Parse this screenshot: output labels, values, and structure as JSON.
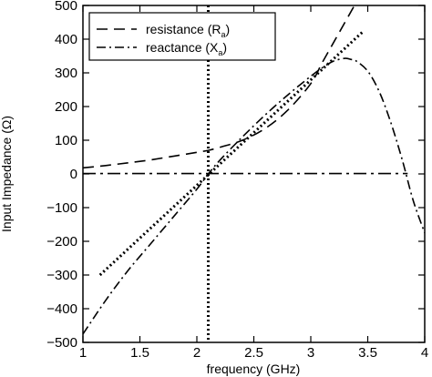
{
  "chart_data": {
    "type": "line",
    "xlabel": "frequency (GHz)",
    "ylabel": "Input Impedance (Ω)",
    "xlim": [
      1,
      4
    ],
    "ylim": [
      -500,
      500
    ],
    "xticks": [
      1,
      1.5,
      2,
      2.5,
      3,
      3.5,
      4
    ],
    "xtick_labels": [
      "1",
      "1.5",
      "2",
      "2.5",
      "3",
      "3.5",
      "4"
    ],
    "yticks": [
      -500,
      -400,
      -300,
      -200,
      -100,
      0,
      100,
      200,
      300,
      400,
      500
    ],
    "ytick_labels": [
      "−500",
      "−400",
      "−300",
      "−200",
      "−100",
      "0",
      "100",
      "200",
      "300",
      "400",
      "500"
    ],
    "legend_position": "top-left",
    "legend": [
      {
        "label": "resistance (R",
        "sub": "a",
        "close": ")",
        "dash": "12,7"
      },
      {
        "label": "reactance (X",
        "sub": "a",
        "close": ")",
        "dash": "10,4,2,4"
      }
    ],
    "series": [
      {
        "name": "resistance (Ra)",
        "style": "dashed",
        "x": [
          1.0,
          1.2,
          1.4,
          1.6,
          1.8,
          2.0,
          2.1,
          2.2,
          2.4,
          2.6,
          2.8,
          3.0,
          3.1,
          3.2,
          3.3,
          3.4
        ],
        "y": [
          18,
          25,
          33,
          42,
          53,
          64,
          70,
          79,
          100,
          135,
          190,
          268,
          330,
          390,
          450,
          510
        ]
      },
      {
        "name": "reactance (Xa)",
        "style": "dashdot",
        "x": [
          1.0,
          1.2,
          1.4,
          1.6,
          1.8,
          2.0,
          2.1,
          2.2,
          2.4,
          2.6,
          2.8,
          3.0,
          3.1,
          3.2,
          3.3,
          3.35,
          3.4,
          3.5,
          3.6,
          3.7,
          3.8,
          3.9,
          4.0
        ],
        "y": [
          -475,
          -375,
          -285,
          -205,
          -125,
          -45,
          0,
          40,
          110,
          175,
          235,
          290,
          315,
          335,
          343,
          340,
          335,
          305,
          245,
          155,
          45,
          -80,
          -175
        ]
      },
      {
        "name": "",
        "style": "dotted",
        "x": [
          1.15,
          3.45
        ],
        "y": [
          -300,
          420
        ]
      },
      {
        "name": "",
        "style": "dashdot-flat",
        "x": [
          1.0,
          2.0,
          3.0,
          3.85
        ],
        "y": [
          1,
          1,
          1,
          1
        ]
      }
    ],
    "annotations": [
      {
        "type": "vertical-line",
        "style": "dotted",
        "x": 2.1
      }
    ]
  }
}
